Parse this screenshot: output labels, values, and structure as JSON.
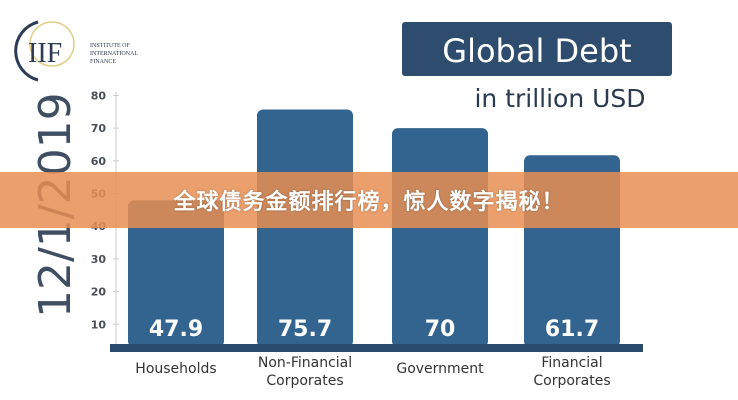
{
  "logo": {
    "mark": "IIF",
    "name_lines": [
      "INSTITUTE OF",
      "INTERNATIONAL",
      "FINANCE"
    ]
  },
  "date_label": "12/1/2019",
  "chart_data": {
    "type": "bar",
    "title": "Global Debt",
    "subtitle": "in trillion USD",
    "categories": [
      "Households",
      "Non-Financial Corporates",
      "Government",
      "Financial Corporates"
    ],
    "category_lines": [
      [
        "Households"
      ],
      [
        "Non-Financial",
        "Corporates"
      ],
      [
        "Government"
      ],
      [
        "Financial",
        "Corporates"
      ]
    ],
    "values": [
      47.9,
      75.7,
      70,
      61.7
    ],
    "data_labels": [
      "47.9",
      "75.7",
      "70",
      "61.7"
    ],
    "ylim": [
      0,
      80
    ],
    "yticks": [
      10,
      20,
      30,
      40,
      50,
      60,
      70,
      80
    ],
    "grid": false,
    "colors": {
      "bar": "#33648f",
      "baseline": "#2a4a6e",
      "title_box": "#2e4d6e",
      "axis_text": "#4a4f57"
    }
  },
  "banner": {
    "text": "全球债务金额排行榜，惊人数字揭秘！",
    "color": "#e88e52"
  }
}
